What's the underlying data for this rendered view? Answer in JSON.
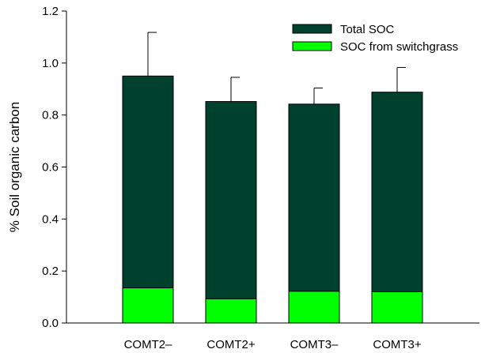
{
  "chart_data": {
    "type": "bar",
    "stacked": "overlaid",
    "categories": [
      "COMT2–",
      "COMT2+",
      "COMT3–",
      "COMT3+"
    ],
    "series": [
      {
        "name": "Total SOC",
        "color": "#00412e",
        "values": [
          0.95,
          0.852,
          0.842,
          0.888
        ],
        "error_plus": [
          0.168,
          0.093,
          0.062,
          0.095
        ]
      },
      {
        "name": "SOC from switchgrass",
        "color": "#00ff00",
        "values": [
          0.135,
          0.093,
          0.122,
          0.12
        ]
      }
    ],
    "ylabel": "% Soil organic carbon",
    "ylim": [
      0,
      1.2
    ],
    "yticks": [
      "0.0",
      "0.2",
      "0.4",
      "0.6",
      "0.8",
      "1.0",
      "1.2"
    ],
    "grid": false,
    "legend_position": "top-right",
    "error_bars": "upper"
  }
}
